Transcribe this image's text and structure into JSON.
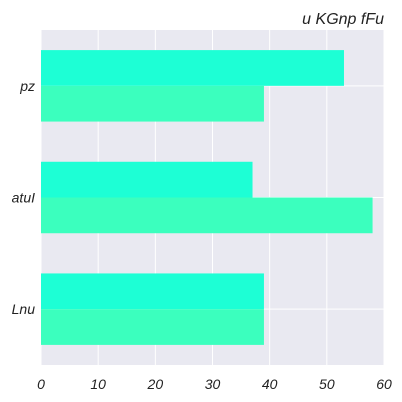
{
  "chart_data": {
    "type": "bar",
    "orientation": "horizontal",
    "title": "u KGnp fFu",
    "xlabel": "",
    "ylabel": "",
    "categories": [
      "pz",
      "atuI",
      "Lnu"
    ],
    "series": [
      {
        "values": [
          53,
          37,
          39
        ],
        "color": "#1dffd5"
      },
      {
        "values": [
          39,
          58,
          39
        ],
        "color": "#3bffbe"
      }
    ],
    "xlim": [
      0,
      60
    ],
    "xticks": [
      "0",
      "10",
      "20",
      "30",
      "40",
      "50",
      "60"
    ],
    "grid": true,
    "background": "#e9e9f1"
  }
}
